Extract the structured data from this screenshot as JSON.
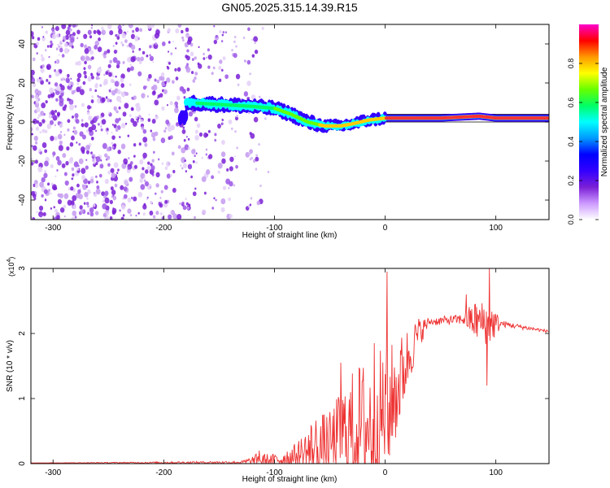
{
  "title": "GN05.2025.315.14.39.R15",
  "chart_data": [
    {
      "type": "heatmap",
      "title": "GN05.2025.315.14.39.R15",
      "xlabel": "Height of straight line (km)",
      "ylabel": "Frequency (Hz)",
      "xlim": [
        -320,
        148
      ],
      "ylim": [
        -50,
        50
      ],
      "xticks": [
        -300,
        -200,
        -100,
        0,
        100
      ],
      "yticks": [
        -40,
        -20,
        0,
        20,
        40
      ],
      "colorbar": {
        "label": "Normalized spectral amplitude",
        "range": [
          0,
          1
        ],
        "ticks": [
          0.0,
          0.2,
          0.4,
          0.6,
          0.8
        ],
        "colormap": [
          "#ffffff",
          "#cc99ff",
          "#7a1fd6",
          "#3300ff",
          "#0000ff",
          "#0099ff",
          "#00ffff",
          "#00ff66",
          "#66ff00",
          "#ffff00",
          "#ff9900",
          "#ff0000",
          "#ff00cc"
        ]
      },
      "features": {
        "noise_region_x": [
          -320,
          -140
        ],
        "track_centerline": [
          {
            "x": -180,
            "f": 10
          },
          {
            "x": -150,
            "f": 9
          },
          {
            "x": -120,
            "f": 8
          },
          {
            "x": -100,
            "f": 7
          },
          {
            "x": -85,
            "f": 4
          },
          {
            "x": -70,
            "f": 0
          },
          {
            "x": -55,
            "f": -2
          },
          {
            "x": -40,
            "f": -2
          },
          {
            "x": -30,
            "f": -1
          },
          {
            "x": -15,
            "f": 1
          },
          {
            "x": 0,
            "f": 2
          },
          {
            "x": 50,
            "f": 2
          },
          {
            "x": 85,
            "f": 3
          },
          {
            "x": 100,
            "f": 2
          },
          {
            "x": 148,
            "f": 2
          }
        ],
        "reference_lines_f": [
          0,
          4
        ]
      }
    },
    {
      "type": "line",
      "xlabel": "Height of straight line (km)",
      "ylabel": "SNR (10 * v/v)",
      "multiplier_label": "(x10",
      "multiplier_exp": "4",
      "xlim": [
        -320,
        148
      ],
      "ylim": [
        0,
        3
      ],
      "xticks": [
        -300,
        -200,
        -100,
        0,
        100
      ],
      "yticks": [
        0,
        1,
        2,
        3
      ],
      "series": [
        {
          "color": "#ee3333",
          "envelope": [
            {
              "x": -320,
              "base": 0.01,
              "amp": 0.0
            },
            {
              "x": -130,
              "base": 0.02,
              "amp": 0.02
            },
            {
              "x": -115,
              "base": 0.04,
              "amp": 0.12
            },
            {
              "x": -100,
              "base": 0.05,
              "amp": 0.1
            },
            {
              "x": -80,
              "base": 0.12,
              "amp": 0.2
            },
            {
              "x": -65,
              "base": 0.2,
              "amp": 0.55
            },
            {
              "x": -50,
              "base": 0.3,
              "amp": 0.5
            },
            {
              "x": -40,
              "base": 0.45,
              "amp": 0.7
            },
            {
              "x": -25,
              "base": 0.55,
              "amp": 1.0
            },
            {
              "x": -10,
              "base": 0.6,
              "amp": 1.1
            },
            {
              "x": 0,
              "base": 0.8,
              "amp": 1.0
            },
            {
              "x": 10,
              "base": 1.1,
              "amp": 0.8
            },
            {
              "x": 20,
              "base": 1.6,
              "amp": 0.5
            },
            {
              "x": 30,
              "base": 2.0,
              "amp": 0.25
            },
            {
              "x": 40,
              "base": 2.18,
              "amp": 0.06
            },
            {
              "x": 70,
              "base": 2.22,
              "amp": 0.08
            },
            {
              "x": 80,
              "base": 2.2,
              "amp": 0.3
            },
            {
              "x": 95,
              "base": 2.15,
              "amp": 0.35
            },
            {
              "x": 105,
              "base": 2.15,
              "amp": 0.05
            },
            {
              "x": 148,
              "base": 2.03,
              "amp": 0.02
            }
          ],
          "spikes": [
            {
              "x": 2,
              "y": 2.95
            },
            {
              "x": 3,
              "y": 0.15
            },
            {
              "x": 94,
              "y": 3.0
            },
            {
              "x": 92,
              "y": 1.2
            },
            {
              "x": 73,
              "y": 2.6
            },
            {
              "x": -40,
              "y": 1.55
            },
            {
              "x": -10,
              "y": 1.85
            },
            {
              "x": -100,
              "y": 0.1
            },
            {
              "x": -114,
              "y": 0.2
            }
          ]
        }
      ]
    }
  ]
}
